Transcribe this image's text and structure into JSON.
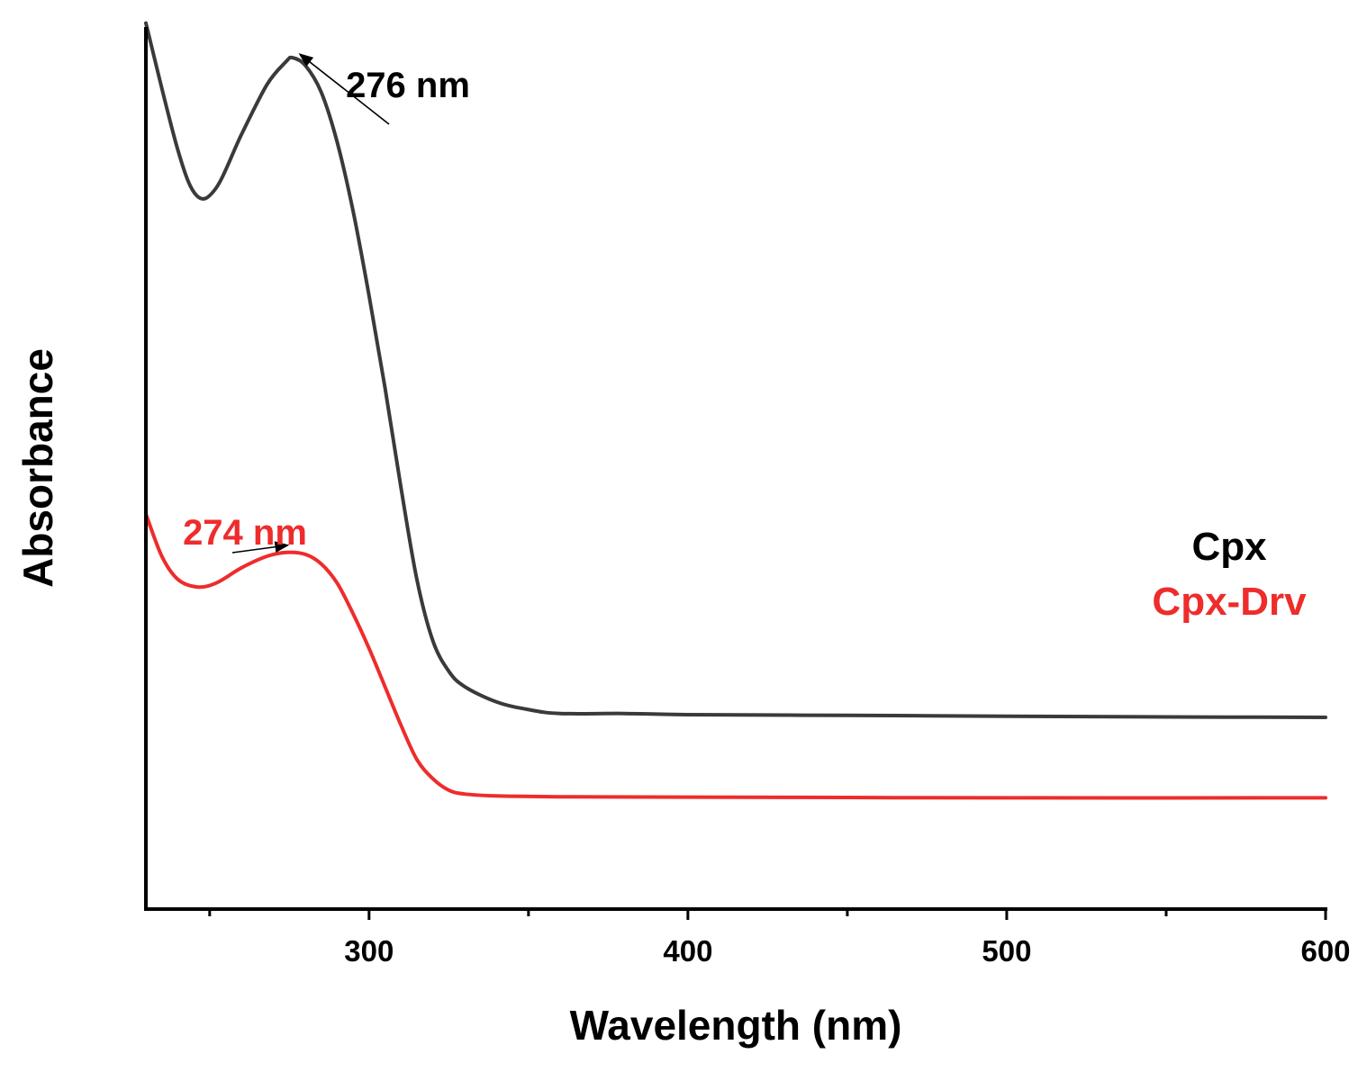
{
  "chart_data": {
    "type": "line",
    "title": "",
    "xlabel": "Wavelength (nm)",
    "ylabel": "Absorbance",
    "xlim": [
      230,
      600
    ],
    "ylim": [
      0,
      2.3
    ],
    "x_ticks": [
      300,
      400,
      500,
      600
    ],
    "x_tick_labels": [
      "300",
      "400",
      "500",
      "600"
    ],
    "y_ticks_shown": false,
    "grid": false,
    "legend_position": "right",
    "series": [
      {
        "name": "Cpx",
        "color": "#3a3a3a",
        "points": [
          [
            230,
            2.31
          ],
          [
            240,
            1.98
          ],
          [
            246,
            1.86
          ],
          [
            252,
            1.88
          ],
          [
            260,
            2.02
          ],
          [
            268,
            2.15
          ],
          [
            274,
            2.21
          ],
          [
            276,
            2.22
          ],
          [
            280,
            2.2
          ],
          [
            285,
            2.13
          ],
          [
            290,
            2.0
          ],
          [
            295,
            1.82
          ],
          [
            300,
            1.6
          ],
          [
            305,
            1.36
          ],
          [
            310,
            1.1
          ],
          [
            315,
            0.86
          ],
          [
            320,
            0.7
          ],
          [
            325,
            0.62
          ],
          [
            330,
            0.58
          ],
          [
            340,
            0.54
          ],
          [
            350,
            0.52
          ],
          [
            360,
            0.51
          ],
          [
            380,
            0.51
          ],
          [
            400,
            0.507
          ],
          [
            450,
            0.505
          ],
          [
            500,
            0.503
          ],
          [
            550,
            0.501
          ],
          [
            600,
            0.5
          ]
        ]
      },
      {
        "name": "Cpx-Drv",
        "color": "#ee2c2c",
        "points": [
          [
            230,
            1.03
          ],
          [
            235,
            0.92
          ],
          [
            240,
            0.86
          ],
          [
            246,
            0.84
          ],
          [
            252,
            0.85
          ],
          [
            260,
            0.89
          ],
          [
            268,
            0.92
          ],
          [
            274,
            0.93
          ],
          [
            280,
            0.925
          ],
          [
            285,
            0.9
          ],
          [
            290,
            0.85
          ],
          [
            295,
            0.77
          ],
          [
            300,
            0.68
          ],
          [
            305,
            0.58
          ],
          [
            310,
            0.48
          ],
          [
            315,
            0.39
          ],
          [
            320,
            0.34
          ],
          [
            325,
            0.31
          ],
          [
            330,
            0.3
          ],
          [
            340,
            0.295
          ],
          [
            360,
            0.293
          ],
          [
            400,
            0.292
          ],
          [
            450,
            0.291
          ],
          [
            500,
            0.29
          ],
          [
            600,
            0.29
          ]
        ]
      }
    ],
    "annotations": [
      {
        "text": "276 nm",
        "series": "Cpx",
        "x": 276,
        "color": "#000000"
      },
      {
        "text": "274 nm",
        "series": "Cpx-Drv",
        "x": 274,
        "color": "#ee2c2c"
      }
    ]
  }
}
